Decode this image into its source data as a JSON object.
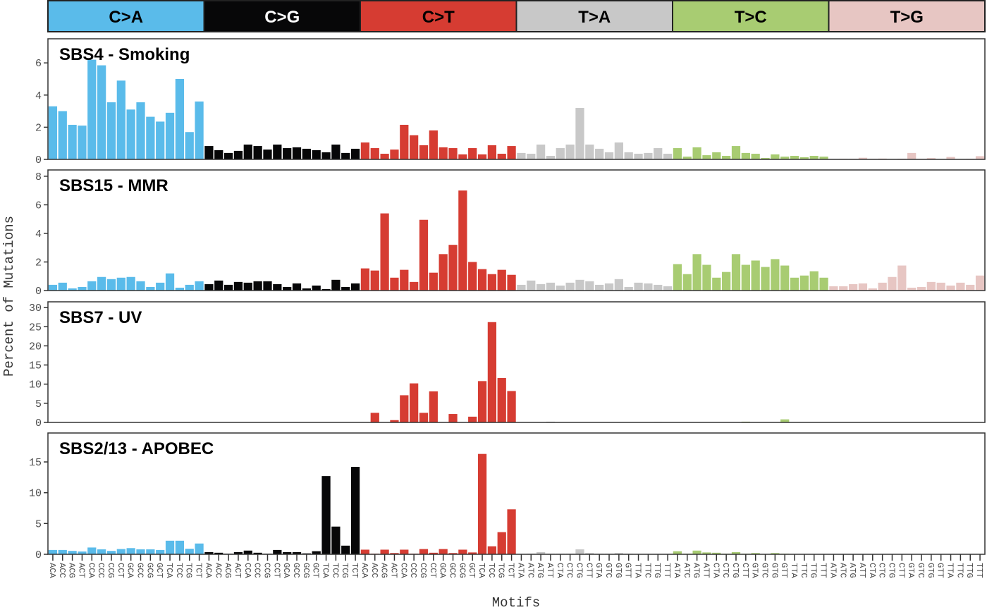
{
  "chart_data": {
    "type": "bar",
    "xlabel": "Motifs",
    "ylabel": "Percent of Mutations",
    "mutation_types": [
      {
        "label": "C>A",
        "color": "#5ABBEA"
      },
      {
        "label": "C>G",
        "color": "#070708"
      },
      {
        "label": "C>T",
        "color": "#D63C32"
      },
      {
        "label": "T>A",
        "color": "#C8C8C8"
      },
      {
        "label": "T>C",
        "color": "#A8CC72"
      },
      {
        "label": "T>G",
        "color": "#E7C6C3"
      }
    ],
    "categories": [
      "ACA",
      "ACC",
      "ACG",
      "ACT",
      "CCA",
      "CCC",
      "CCG",
      "CCT",
      "GCA",
      "GCC",
      "GCG",
      "GCT",
      "TCA",
      "TCC",
      "TCG",
      "TCT",
      "ACA",
      "ACC",
      "ACG",
      "ACT",
      "CCA",
      "CCC",
      "CCG",
      "CCT",
      "GCA",
      "GCC",
      "GCG",
      "GCT",
      "TCA",
      "TCC",
      "TCG",
      "TCT",
      "ACA",
      "ACC",
      "ACG",
      "ACT",
      "CCA",
      "CCC",
      "CCG",
      "CCT",
      "GCA",
      "GCC",
      "GCG",
      "GCT",
      "TCA",
      "TCC",
      "TCG",
      "TCT",
      "ATA",
      "ATC",
      "ATG",
      "ATT",
      "CTA",
      "CTC",
      "CTG",
      "CTT",
      "GTA",
      "GTC",
      "GTG",
      "GTT",
      "TTA",
      "TTC",
      "TTG",
      "TTT",
      "ATA",
      "ATC",
      "ATG",
      "ATT",
      "CTA",
      "CTC",
      "CTG",
      "CTT",
      "GTA",
      "GTC",
      "GTG",
      "GTT",
      "TTA",
      "TTC",
      "TTG",
      "TTT",
      "ATA",
      "ATC",
      "ATG",
      "ATT",
      "CTA",
      "CTC",
      "CTG",
      "CTT",
      "GTA",
      "GTC",
      "GTG",
      "GTT",
      "TTA",
      "TTC",
      "TTG",
      "TTT"
    ],
    "panels": [
      {
        "title": "SBS4 - Smoking",
        "ylim": [
          0,
          7.5
        ],
        "yticks": [
          0,
          2,
          4,
          6
        ],
        "values": [
          3.3,
          3.0,
          2.15,
          2.1,
          6.2,
          5.85,
          3.55,
          4.9,
          3.1,
          3.55,
          2.65,
          2.35,
          2.9,
          5.0,
          1.7,
          3.6,
          0.83,
          0.57,
          0.4,
          0.53,
          0.92,
          0.83,
          0.61,
          0.92,
          0.7,
          0.75,
          0.66,
          0.57,
          0.44,
          0.92,
          0.4,
          0.66,
          1.05,
          0.7,
          0.35,
          0.61,
          2.15,
          1.5,
          0.88,
          1.8,
          0.75,
          0.7,
          0.31,
          0.7,
          0.31,
          0.88,
          0.35,
          0.83,
          0.4,
          0.35,
          0.92,
          0.22,
          0.7,
          0.92,
          3.2,
          0.92,
          0.66,
          0.44,
          1.05,
          0.44,
          0.35,
          0.4,
          0.7,
          0.35,
          0.7,
          0.17,
          0.75,
          0.26,
          0.44,
          0.22,
          0.83,
          0.4,
          0.35,
          0.09,
          0.31,
          0.17,
          0.22,
          0.13,
          0.22,
          0.17,
          0.02,
          0.03,
          0.03,
          0.1,
          0.03,
          0.05,
          0.02,
          0.04,
          0.4,
          0.03,
          0.08,
          0.02,
          0.15,
          0.02,
          0.03,
          0.2
        ]
      },
      {
        "title": "SBS15 - MMR",
        "ylim": [
          0,
          8.44
        ],
        "yticks": [
          0,
          2,
          4,
          6,
          8
        ],
        "values": [
          0.4,
          0.55,
          0.15,
          0.25,
          0.65,
          0.95,
          0.8,
          0.9,
          0.95,
          0.65,
          0.25,
          0.55,
          1.2,
          0.2,
          0.4,
          0.65,
          0.45,
          0.7,
          0.4,
          0.6,
          0.55,
          0.65,
          0.65,
          0.45,
          0.25,
          0.5,
          0.15,
          0.35,
          0.1,
          0.75,
          0.25,
          0.5,
          1.55,
          1.4,
          5.4,
          0.9,
          1.45,
          0.6,
          4.95,
          1.25,
          2.55,
          3.2,
          7.0,
          2.0,
          1.5,
          1.15,
          1.45,
          1.1,
          0.4,
          0.7,
          0.45,
          0.55,
          0.35,
          0.55,
          0.75,
          0.65,
          0.4,
          0.5,
          0.8,
          0.25,
          0.55,
          0.5,
          0.4,
          0.3,
          1.85,
          1.15,
          2.55,
          1.8,
          0.9,
          1.3,
          2.55,
          1.8,
          2.1,
          1.65,
          2.2,
          1.75,
          0.9,
          1.05,
          1.35,
          0.9,
          0.3,
          0.3,
          0.45,
          0.5,
          0.15,
          0.55,
          0.95,
          1.75,
          0.2,
          0.25,
          0.6,
          0.55,
          0.35,
          0.55,
          0.4,
          1.05
        ]
      },
      {
        "title": "SBS7 - UV",
        "ylim": [
          0,
          31.5
        ],
        "yticks": [
          0,
          5,
          10,
          15,
          20,
          25,
          30
        ],
        "values": [
          0,
          0,
          0,
          0,
          0,
          0,
          0,
          0,
          0,
          0,
          0,
          0,
          0,
          0,
          0,
          0,
          0,
          0,
          0,
          0,
          0,
          0,
          0,
          0,
          0,
          0,
          0,
          0,
          0,
          0,
          0,
          0,
          0,
          2.5,
          0,
          0.6,
          7.1,
          10.2,
          2.5,
          8.1,
          0.1,
          2.2,
          0,
          1.5,
          10.8,
          26.2,
          11.6,
          8.2,
          0.05,
          0,
          0,
          0.2,
          0,
          0,
          0,
          0,
          0,
          0,
          0,
          0,
          0,
          0,
          0.1,
          0,
          0,
          0,
          0,
          0,
          0,
          0,
          0,
          0.2,
          0,
          0,
          0,
          0.8,
          0,
          0,
          0,
          0,
          0,
          0,
          0,
          0,
          0,
          0,
          0,
          0,
          0,
          0,
          0,
          0,
          0,
          0,
          0,
          0
        ]
      },
      {
        "title": "SBS2/13 - APOBEC",
        "ylim": [
          0,
          19.7
        ],
        "yticks": [
          0,
          5,
          10,
          15
        ],
        "values": [
          0.7,
          0.7,
          0.55,
          0.45,
          1.1,
          0.8,
          0.55,
          0.85,
          1.0,
          0.8,
          0.8,
          0.7,
          2.2,
          2.2,
          0.9,
          1.75,
          0.35,
          0.25,
          0.1,
          0.35,
          0.6,
          0.25,
          0.1,
          0.7,
          0.35,
          0.35,
          0.15,
          0.5,
          12.7,
          4.5,
          1.4,
          14.2,
          0.75,
          0.1,
          0.75,
          0.2,
          0.75,
          0.1,
          0.85,
          0.25,
          0.85,
          0.2,
          0.75,
          0.3,
          16.3,
          1.3,
          3.6,
          7.3,
          0.05,
          0.1,
          0.35,
          0.1,
          0.1,
          0.1,
          0.8,
          0.2,
          0.1,
          0.1,
          0.2,
          0.1,
          0.05,
          0.05,
          0.05,
          0.05,
          0.5,
          0.1,
          0.6,
          0.3,
          0.25,
          0.1,
          0.35,
          0.1,
          0.2,
          0.05,
          0.2,
          0.1,
          0.05,
          0.05,
          0.05,
          0.05,
          0,
          0,
          0,
          0,
          0,
          0,
          0,
          0,
          0,
          0,
          0,
          0,
          0,
          0,
          0,
          0
        ]
      }
    ]
  }
}
